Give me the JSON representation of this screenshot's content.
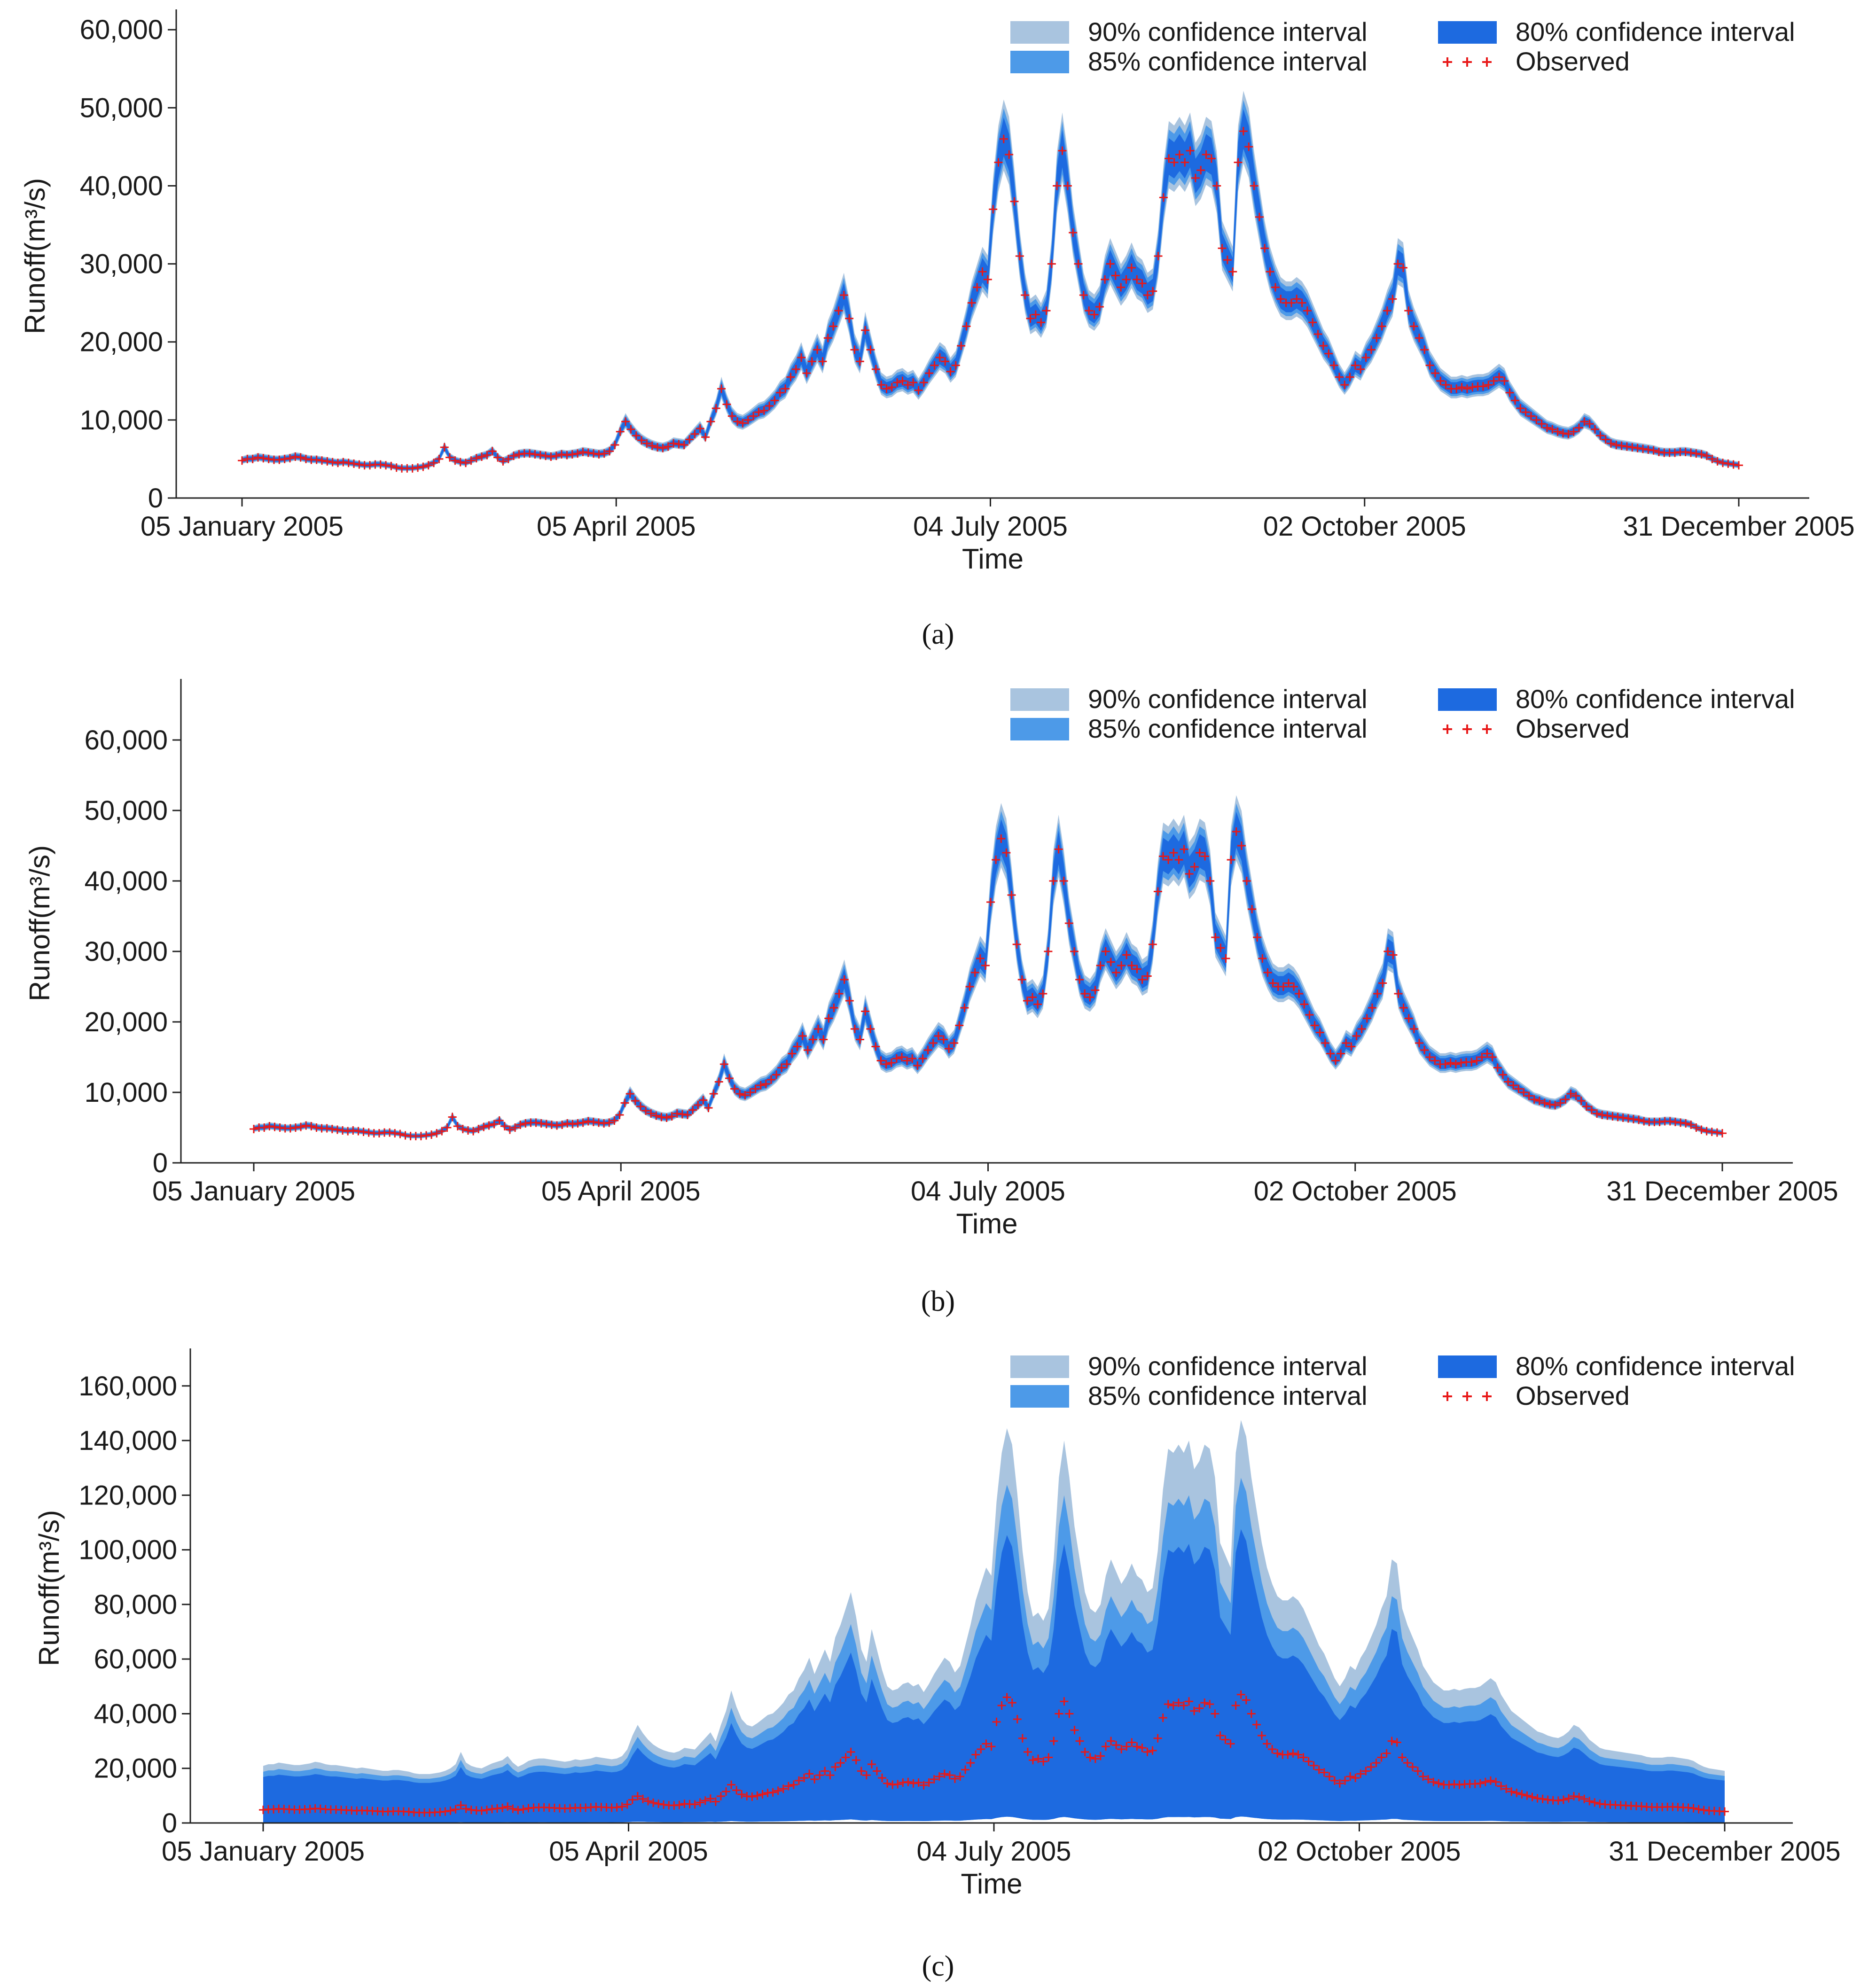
{
  "chart_data": [
    {
      "type": "area",
      "caption": "(a)",
      "xlabel": "Time",
      "ylabel": "Runoff(m³/s)",
      "x_ticks": [
        "05 January 2005",
        "05 April 2005",
        "04 July 2005",
        "02 October 2005",
        "31 December 2005"
      ],
      "ylim": [
        0,
        62000
      ],
      "y_ticks": [
        0,
        10000,
        20000,
        30000,
        40000,
        50000,
        60000
      ],
      "y_tick_labels": [
        "0",
        "10,000",
        "20,000",
        "30,000",
        "40,000",
        "50,000",
        "60,000"
      ],
      "grid": false,
      "legend_position": "top-right",
      "legend": [
        "90% confidence interval",
        "85% confidence interval",
        "80% confidence interval",
        "Observed"
      ],
      "interval_widths": {
        "ci90": 0.11,
        "ci85": 0.085,
        "ci80": 0.06
      }
    },
    {
      "type": "area",
      "caption": "(b)",
      "xlabel": "Time",
      "ylabel": "Runoff(m³/s)",
      "x_ticks": [
        "05 January 2005",
        "05 April 2005",
        "04 July 2005",
        "02 October 2005",
        "31 December 2005"
      ],
      "ylim": [
        0,
        68000
      ],
      "y_ticks": [
        0,
        10000,
        20000,
        30000,
        40000,
        50000,
        60000
      ],
      "y_tick_labels": [
        "0",
        "10,000",
        "20,000",
        "30,000",
        "40,000",
        "50,000",
        "60,000"
      ],
      "grid": false,
      "legend_position": "top-right",
      "legend": [
        "90% confidence interval",
        "85% confidence interval",
        "80% confidence interval",
        "Observed"
      ],
      "interval_widths": {
        "ci90": 0.11,
        "ci85": 0.085,
        "ci80": 0.06
      }
    },
    {
      "type": "area",
      "caption": "(c)",
      "xlabel": "Time",
      "ylabel": "Runoff(m³/s)",
      "x_ticks": [
        "05 January 2005",
        "05 April 2005",
        "04 July 2005",
        "02 October 2005",
        "31 December 2005"
      ],
      "ylim": [
        0,
        172000
      ],
      "y_ticks": [
        0,
        20000,
        40000,
        60000,
        80000,
        100000,
        120000,
        140000,
        160000
      ],
      "y_tick_labels": [
        "0",
        "20,000",
        "40,000",
        "60,000",
        "80,000",
        "100,000",
        "120,000",
        "140,000",
        "160,000"
      ],
      "grid": false,
      "legend_position": "top-right",
      "legend": [
        "90% confidence interval",
        "85% confidence interval",
        "80% confidence interval",
        "Observed"
      ],
      "interval_widths": {
        "ci90": 2.0,
        "ci85": 1.55,
        "ci80": 1.15
      }
    }
  ],
  "observed_runoff": {
    "date_range": [
      "05 January 2005",
      "31 December 2005"
    ],
    "values": [
      4800,
      5000,
      5000,
      5200,
      5100,
      5000,
      4900,
      4900,
      5000,
      5100,
      5300,
      5200,
      5000,
      4900,
      4900,
      4800,
      4700,
      4600,
      4500,
      4600,
      4500,
      4400,
      4300,
      4200,
      4200,
      4300,
      4300,
      4200,
      4100,
      3900,
      3800,
      3800,
      3800,
      3900,
      4000,
      4200,
      4500,
      5000,
      6500,
      5200,
      4800,
      4600,
      4500,
      4800,
      5100,
      5300,
      5500,
      6000,
      5200,
      4700,
      5000,
      5400,
      5600,
      5700,
      5700,
      5600,
      5500,
      5400,
      5300,
      5400,
      5600,
      5500,
      5600,
      5700,
      5900,
      5800,
      5700,
      5600,
      5700,
      6000,
      6800,
      8500,
      9800,
      8800,
      8000,
      7400,
      7000,
      6700,
      6500,
      6400,
      6600,
      7000,
      6900,
      6800,
      7500,
      8200,
      8900,
      7800,
      9800,
      11500,
      14000,
      12000,
      10500,
      9800,
      9600,
      10000,
      10500,
      11000,
      11200,
      11800,
      12500,
      13500,
      14000,
      15500,
      16500,
      18000,
      16000,
      17500,
      19000,
      17500,
      20500,
      22000,
      24000,
      26000,
      23000,
      19000,
      17500,
      21500,
      19000,
      16500,
      14500,
      14000,
      14200,
      14800,
      15000,
      14500,
      14800,
      13800,
      14800,
      16000,
      17000,
      18000,
      17500,
      16200,
      17000,
      19500,
      22000,
      25000,
      27000,
      29000,
      28000,
      37000,
      43000,
      46000,
      44000,
      38000,
      31000,
      26000,
      23000,
      23500,
      22500,
      24000,
      30000,
      40000,
      44500,
      40000,
      34000,
      30000,
      26000,
      24000,
      23500,
      24500,
      28000,
      30000,
      28500,
      27000,
      28000,
      29500,
      28000,
      27500,
      26000,
      26500,
      31000,
      38500,
      43500,
      43000,
      44000,
      43000,
      44500,
      41000,
      42000,
      44000,
      43500,
      40000,
      32000,
      30500,
      29000,
      43000,
      47000,
      45000,
      40000,
      36000,
      32000,
      29000,
      27000,
      25500,
      25000,
      25000,
      25500,
      25000,
      24000,
      22500,
      21000,
      19500,
      18500,
      17000,
      15500,
      14500,
      15500,
      17000,
      16500,
      18000,
      19000,
      20500,
      22000,
      24000,
      25500,
      30000,
      29500,
      24000,
      22000,
      20500,
      19000,
      17000,
      16000,
      15000,
      14500,
      14000,
      14000,
      14200,
      14000,
      14200,
      14300,
      14300,
      14500,
      15000,
      15500,
      15000,
      13500,
      12500,
      11500,
      11000,
      10500,
      10000,
      9500,
      9000,
      8800,
      8500,
      8300,
      8200,
      8500,
      9000,
      9800,
      9500,
      8800,
      8000,
      7500,
      7000,
      6800,
      6700,
      6600,
      6500,
      6400,
      6300,
      6200,
      6100,
      5900,
      5800,
      5800,
      5800,
      5900,
      5900,
      5800,
      5700,
      5600,
      5400,
      5000,
      4700,
      4500,
      4400,
      4300,
      4200
    ]
  }
}
